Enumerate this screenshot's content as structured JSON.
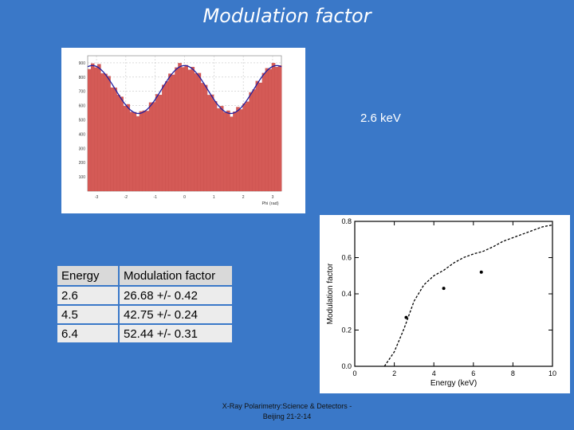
{
  "slide": {
    "title": "Modulation factor",
    "energy_label": "2.6 keV",
    "footer_line1": "X-Ray Polarimetry:Science & Detectors -",
    "footer_line2": "Beijing 21-2-14"
  },
  "table": {
    "header": {
      "energy": "Energy",
      "factor": "Modulation factor"
    },
    "rows": [
      {
        "energy": "2.6",
        "factor": "26.68 +/- 0.42"
      },
      {
        "energy": "4.5",
        "factor": "42.75 +/- 0.24"
      },
      {
        "energy": "6.4",
        "factor": "52.44 +/- 0.31"
      }
    ]
  },
  "chart_data": [
    {
      "type": "bar",
      "title": "",
      "xlabel": "Phi (rad)",
      "ylabel": "",
      "xlim": [
        -3.3,
        3.3
      ],
      "ylim": [
        0,
        950
      ],
      "xticks": [
        "-3",
        "-2",
        "-1",
        "0",
        "1",
        "2",
        "3"
      ],
      "yticks": [
        "100",
        "200",
        "300",
        "400",
        "500",
        "600",
        "700",
        "800",
        "900"
      ],
      "bin_count": 60,
      "fit": {
        "mean": 713,
        "amplitude": 168,
        "period_factor": 2
      },
      "colors": {
        "bars": "#d45a56",
        "fit": "#2020a0"
      }
    },
    {
      "type": "line",
      "title": "",
      "xlabel": "Energy (keV)",
      "ylabel": "Modulation factor",
      "xlim": [
        0,
        10
      ],
      "ylim": [
        0,
        0.8
      ],
      "xticks": [
        "0",
        "2",
        "4",
        "6",
        "8",
        "10"
      ],
      "yticks": [
        "0.0",
        "0.2",
        "0.4",
        "0.6",
        "0.8"
      ],
      "curve": {
        "x": [
          1.5,
          2.0,
          2.5,
          2.8,
          3.0,
          3.5,
          4.0,
          4.5,
          5.0,
          5.5,
          6.0,
          6.5,
          7.0,
          7.5,
          8.0,
          8.5,
          9.0,
          9.5,
          10.0
        ],
        "y": [
          0.0,
          0.08,
          0.21,
          0.3,
          0.36,
          0.45,
          0.5,
          0.53,
          0.57,
          0.6,
          0.62,
          0.635,
          0.66,
          0.69,
          0.71,
          0.73,
          0.75,
          0.77,
          0.78
        ]
      },
      "points": {
        "x": [
          2.6,
          4.5,
          6.4
        ],
        "y": [
          0.27,
          0.43,
          0.52
        ]
      }
    }
  ]
}
